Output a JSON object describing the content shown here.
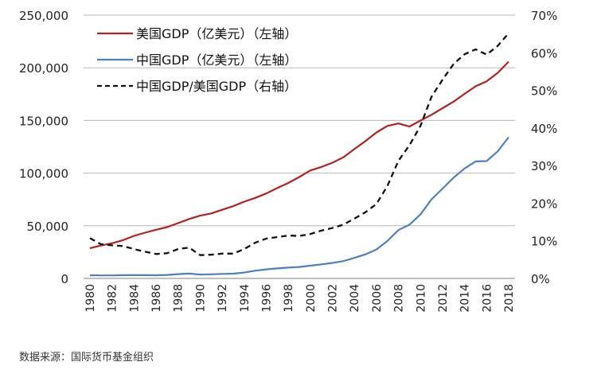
{
  "chart_data": {
    "type": "line",
    "categories": [
      "1980",
      "1981",
      "1982",
      "1983",
      "1984",
      "1985",
      "1986",
      "1987",
      "1988",
      "1989",
      "1990",
      "1991",
      "1992",
      "1993",
      "1994",
      "1995",
      "1996",
      "1997",
      "1998",
      "1999",
      "2000",
      "2001",
      "2002",
      "2003",
      "2004",
      "2005",
      "2006",
      "2007",
      "2008",
      "2009",
      "2010",
      "2011",
      "2012",
      "2013",
      "2014",
      "2015",
      "2016",
      "2017",
      "2018"
    ],
    "x_tick_labels": [
      "1980",
      "1982",
      "1984",
      "1986",
      "1988",
      "1990",
      "1992",
      "1994",
      "1996",
      "1998",
      "2000",
      "2002",
      "2004",
      "2006",
      "2008",
      "2010",
      "2012",
      "2014",
      "2016",
      "2018"
    ],
    "left_axis": {
      "ylim": [
        0,
        250000
      ],
      "ticks": [
        "0",
        "50,000",
        "100,000",
        "150,000",
        "200,000",
        "250,000"
      ]
    },
    "right_axis": {
      "ylim": [
        0,
        70
      ],
      "ticks": [
        "0%",
        "10%",
        "20%",
        "30%",
        "40%",
        "50%",
        "60%",
        "70%"
      ]
    },
    "grid": "horizontal",
    "legend_position": "top-left",
    "series": [
      {
        "name": "美国GDP（亿美元）（左轴）",
        "axis": "left",
        "style": "solid",
        "color": "#b22222",
        "values": [
          28600,
          31300,
          33400,
          36300,
          40400,
          43400,
          46200,
          48700,
          52500,
          56400,
          59600,
          61700,
          65200,
          68600,
          72900,
          76400,
          80700,
          85800,
          90600,
          96300,
          102500,
          105800,
          109800,
          115000,
          122800,
          130400,
          138600,
          144800,
          147100,
          144200,
          149900,
          155400,
          161600,
          167800,
          175200,
          182400,
          187100,
          195200,
          205800
        ]
      },
      {
        "name": "中国GDP（亿美元）（左轴）",
        "axis": "left",
        "style": "solid",
        "color": "#4f7fbf",
        "values": [
          3000,
          2900,
          2900,
          3100,
          3100,
          3100,
          3000,
          3300,
          4100,
          4600,
          3700,
          3900,
          4300,
          4500,
          5600,
          7300,
          8600,
          9500,
          10300,
          10900,
          12100,
          13400,
          14700,
          16500,
          19500,
          22900,
          27500,
          35600,
          46000,
          51000,
          60900,
          75100,
          85300,
          95700,
          104400,
          111100,
          111400,
          120600,
          134100
        ]
      },
      {
        "name": "中国GDP/美国GDP（右轴）",
        "axis": "right",
        "style": "dashed",
        "color": "#111111",
        "values": [
          10.7,
          9.1,
          8.8,
          8.6,
          7.8,
          7.1,
          6.5,
          6.7,
          7.8,
          8.2,
          6.2,
          6.3,
          6.6,
          6.6,
          7.8,
          9.5,
          10.6,
          11.0,
          11.4,
          11.3,
          11.8,
          12.7,
          13.4,
          14.3,
          15.9,
          17.6,
          19.8,
          24.6,
          31.3,
          35.4,
          40.6,
          48.3,
          52.8,
          57.0,
          59.6,
          60.9,
          59.5,
          61.8,
          65.2
        ]
      }
    ]
  },
  "source_note": "数据来源：国际货币基金组织"
}
